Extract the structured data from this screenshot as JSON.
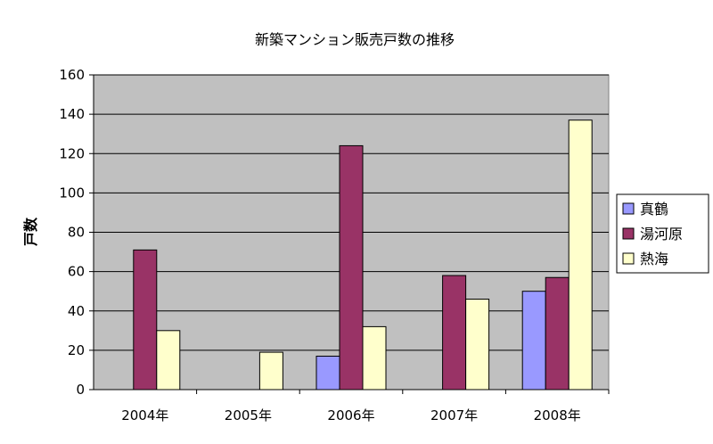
{
  "chart_data": {
    "type": "bar",
    "title": "新築マンション販売戸数の推移",
    "xlabel": "",
    "ylabel": "戸数",
    "categories": [
      "2004年",
      "2005年",
      "2006年",
      "2007年",
      "2008年"
    ],
    "series": [
      {
        "name": "真鶴",
        "values": [
          0,
          0,
          17,
          0,
          50
        ],
        "color": "#9999ff"
      },
      {
        "name": "湯河原",
        "values": [
          71,
          0,
          124,
          58,
          57
        ],
        "color": "#993366"
      },
      {
        "name": "熱海",
        "values": [
          30,
          19,
          32,
          46,
          137
        ],
        "color": "#ffffcc"
      }
    ],
    "ylim": [
      0,
      160
    ],
    "yticks": [
      0,
      20,
      40,
      60,
      80,
      100,
      120,
      140,
      160
    ],
    "grid": true,
    "plot_background": "#c0c0c0",
    "legend_position": "right"
  }
}
